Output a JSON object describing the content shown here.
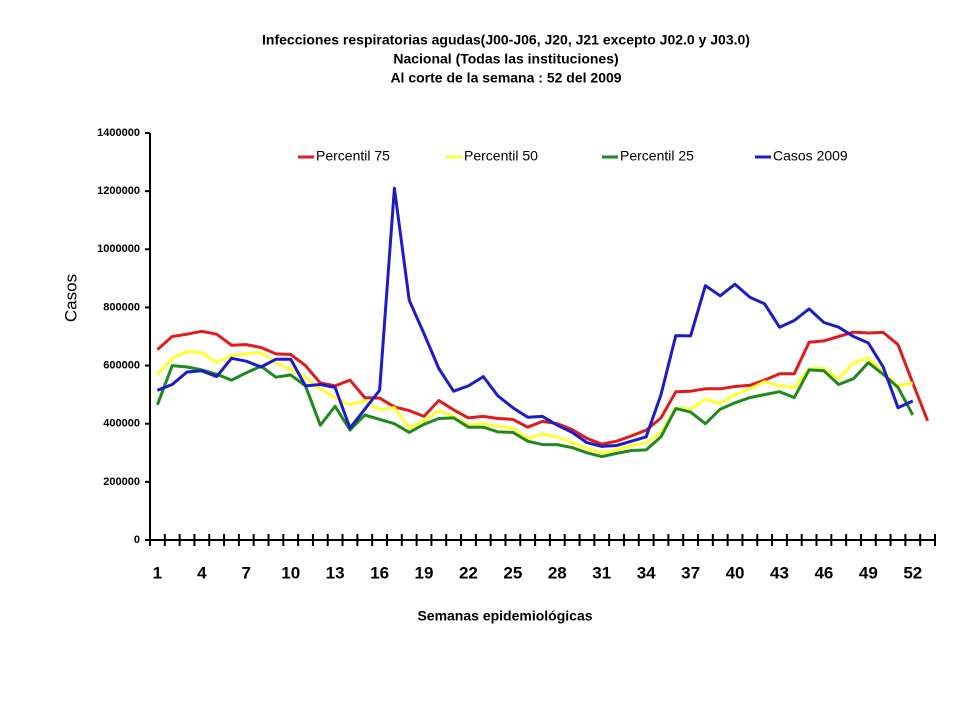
{
  "chart_data": {
    "type": "line",
    "title": "Infecciones respiratorias agudas(J00-J06, J20, J21 excepto J02.0 y J03.0)",
    "subtitle": [
      "Nacional  (Todas las instituciones)",
      "Al corte de la semana : 52 del 2009"
    ],
    "y_label": "Casos",
    "x_label": "Semanas epidemiológicas",
    "categories": [
      "1",
      null,
      null,
      "4",
      null,
      null,
      "7",
      null,
      null,
      "10",
      null,
      null,
      "13",
      null,
      null,
      "16",
      null,
      null,
      "19",
      null,
      null,
      "22",
      null,
      null,
      "25",
      null,
      null,
      "28",
      null,
      null,
      "31",
      null,
      null,
      "34",
      null,
      null,
      "37",
      null,
      null,
      "40",
      null,
      null,
      "43",
      null,
      null,
      "46",
      null,
      null,
      "49",
      null,
      null,
      "52",
      null
    ],
    "ylim": [
      0,
      1400000
    ],
    "yticks": [
      0,
      200000,
      400000,
      600000,
      800000,
      1000000,
      1200000,
      1400000
    ],
    "legend": "top",
    "series": [
      {
        "name": "Percentil 75",
        "color": "#e01b1b",
        "values": [
          655000,
          700000,
          708000,
          718000,
          708000,
          670000,
          672000,
          662000,
          640000,
          638000,
          600000,
          540000,
          530000,
          550000,
          490000,
          488000,
          458000,
          445000,
          425000,
          480000,
          448000,
          420000,
          425000,
          418000,
          415000,
          388000,
          408000,
          400000,
          380000,
          350000,
          330000,
          340000,
          358000,
          378000,
          420000,
          510000,
          512000,
          520000,
          520000,
          528000,
          532000,
          550000,
          572000,
          572000,
          680000,
          685000,
          700000,
          715000,
          712000,
          714000,
          672000,
          540000,
          410000
        ]
      },
      {
        "name": "Percentil 50",
        "color": "#ffff33",
        "values": [
          570000,
          625000,
          648000,
          645000,
          610000,
          635000,
          640000,
          645000,
          610000,
          585000,
          560000,
          520000,
          490000,
          465000,
          480000,
          448000,
          455000,
          385000,
          410000,
          445000,
          425000,
          395000,
          400000,
          390000,
          385000,
          350000,
          365000,
          355000,
          335000,
          315000,
          300000,
          310000,
          325000,
          335000,
          370000,
          455000,
          450000,
          485000,
          470000,
          500000,
          520000,
          545000,
          530000,
          525000,
          590000,
          590000,
          555000,
          610000,
          625000,
          580000,
          530000,
          540000,
          null
        ]
      },
      {
        "name": "Percentil 25",
        "color": "#1e8a1e",
        "values": [
          465000,
          600000,
          595000,
          585000,
          570000,
          550000,
          575000,
          598000,
          560000,
          568000,
          530000,
          395000,
          460000,
          378000,
          430000,
          415000,
          400000,
          370000,
          398000,
          418000,
          420000,
          388000,
          388000,
          372000,
          370000,
          340000,
          328000,
          328000,
          318000,
          300000,
          287000,
          298000,
          308000,
          310000,
          355000,
          452000,
          440000,
          400000,
          450000,
          472000,
          490000,
          500000,
          510000,
          490000,
          585000,
          582000,
          535000,
          555000,
          610000,
          570000,
          525000,
          430000,
          null
        ]
      },
      {
        "name": "Casos 2009",
        "color": "#1c1cc8",
        "values": [
          515000,
          535000,
          578000,
          582000,
          562000,
          625000,
          615000,
          595000,
          622000,
          622000,
          530000,
          535000,
          525000,
          385000,
          450000,
          515000,
          1210000,
          825000,
          710000,
          590000,
          512000,
          530000,
          562000,
          495000,
          455000,
          422000,
          425000,
          395000,
          370000,
          335000,
          322000,
          325000,
          340000,
          355000,
          500000,
          703000,
          702000,
          875000,
          840000,
          880000,
          835000,
          812000,
          732000,
          755000,
          795000,
          748000,
          732000,
          700000,
          678000,
          595000,
          455000,
          478000,
          null
        ]
      }
    ]
  }
}
